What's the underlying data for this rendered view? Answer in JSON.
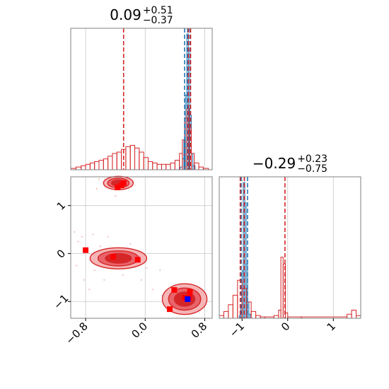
{
  "chart_data": [
    {
      "type": "histogram",
      "panel": "top-left (1D marginal, parameter 1)",
      "title": {
        "value": "0.09",
        "plus": "+0.51",
        "minus": "−0.37"
      },
      "xlim": [
        -1.0,
        0.9
      ],
      "grid": true,
      "x_ticks": [
        "−0.8",
        "0.0",
        "0.8"
      ],
      "series": [
        {
          "color": "#1f77b4",
          "bins": [
            [
              0.42,
              0.47,
              0
            ],
            [
              0.47,
              0.5,
              2
            ],
            [
              0.5,
              0.52,
              8
            ],
            [
              0.52,
              0.54,
              22
            ],
            [
              0.54,
              0.56,
              55
            ],
            [
              0.56,
              0.58,
              100
            ],
            [
              0.58,
              0.6,
              88
            ],
            [
              0.6,
              0.62,
              40
            ],
            [
              0.62,
              0.64,
              12
            ],
            [
              0.64,
              0.67,
              3
            ],
            [
              0.67,
              0.7,
              0
            ]
          ],
          "quantile_lines": [
            0.53,
            0.57,
            0.6
          ]
        },
        {
          "color": "#d62728",
          "bins": [
            [
              -1.0,
              -0.93,
              1
            ],
            [
              -0.93,
              -0.86,
              2
            ],
            [
              -0.86,
              -0.8,
              3
            ],
            [
              -0.8,
              -0.74,
              4
            ],
            [
              -0.74,
              -0.68,
              5
            ],
            [
              -0.68,
              -0.62,
              6
            ],
            [
              -0.62,
              -0.56,
              7
            ],
            [
              -0.56,
              -0.5,
              8
            ],
            [
              -0.5,
              -0.44,
              10
            ],
            [
              -0.44,
              -0.38,
              12
            ],
            [
              -0.38,
              -0.32,
              13
            ],
            [
              -0.32,
              -0.26,
              15
            ],
            [
              -0.26,
              -0.2,
              17
            ],
            [
              -0.2,
              -0.14,
              18
            ],
            [
              -0.14,
              -0.08,
              16
            ],
            [
              -0.08,
              -0.02,
              13
            ],
            [
              -0.02,
              0.04,
              9
            ],
            [
              0.04,
              0.1,
              6
            ],
            [
              0.1,
              0.16,
              5
            ],
            [
              0.16,
              0.22,
              4
            ],
            [
              0.22,
              0.28,
              4
            ],
            [
              0.28,
              0.34,
              4
            ],
            [
              0.34,
              0.4,
              5
            ],
            [
              0.4,
              0.46,
              7
            ],
            [
              0.46,
              0.5,
              12
            ],
            [
              0.5,
              0.53,
              22
            ],
            [
              0.53,
              0.56,
              38
            ],
            [
              0.56,
              0.59,
              45
            ],
            [
              0.59,
              0.62,
              30
            ],
            [
              0.62,
              0.66,
              12
            ],
            [
              0.66,
              0.72,
              5
            ],
            [
              0.72,
              0.78,
              2
            ],
            [
              0.78,
              0.85,
              1
            ],
            [
              0.85,
              0.9,
              0
            ]
          ],
          "quantile_lines": [
            -0.29,
            0.58,
            0.61
          ]
        }
      ]
    },
    {
      "type": "histogram",
      "panel": "bottom-right (1D marginal, parameter 2)",
      "title": {
        "value": "−0.29",
        "plus": "+0.23",
        "minus": "−0.75"
      },
      "xlim": [
        -1.5,
        1.6
      ],
      "grid": true,
      "x_ticks": [
        "−1",
        "0",
        "1"
      ],
      "series": [
        {
          "color": "#1f77b4",
          "bins": [
            [
              -1.06,
              -1.03,
              2
            ],
            [
              -1.03,
              -1.0,
              10
            ],
            [
              -1.0,
              -0.97,
              35
            ],
            [
              -0.97,
              -0.94,
              100
            ],
            [
              -0.94,
              -0.91,
              85
            ],
            [
              -0.91,
              -0.88,
              40
            ],
            [
              -0.88,
              -0.85,
              12
            ],
            [
              -0.85,
              -0.82,
              3
            ],
            [
              -0.82,
              -0.78,
              0
            ]
          ],
          "quantile_lines": [
            -1.02,
            -0.95,
            -0.88
          ]
        },
        {
          "color": "#d62728",
          "bins": [
            [
              -1.5,
              -1.4,
              2
            ],
            [
              -1.4,
              -1.3,
              5
            ],
            [
              -1.3,
              -1.2,
              10
            ],
            [
              -1.2,
              -1.1,
              17
            ],
            [
              -1.1,
              -1.0,
              28
            ],
            [
              -1.0,
              -0.9,
              22
            ],
            [
              -0.9,
              -0.8,
              12
            ],
            [
              -0.8,
              -0.7,
              5
            ],
            [
              -0.7,
              -0.6,
              2
            ],
            [
              -0.6,
              -0.5,
              1
            ],
            [
              -0.5,
              -0.3,
              1
            ],
            [
              -0.3,
              -0.2,
              2
            ],
            [
              -0.2,
              -0.15,
              6
            ],
            [
              -0.15,
              -0.1,
              45
            ],
            [
              -0.1,
              -0.05,
              40
            ],
            [
              -0.05,
              0.0,
              4
            ],
            [
              0.0,
              0.3,
              1
            ],
            [
              0.3,
              1.3,
              1
            ],
            [
              1.3,
              1.4,
              3
            ],
            [
              1.4,
              1.5,
              6
            ],
            [
              1.5,
              1.6,
              2
            ]
          ],
          "quantile_lines": [
            -1.04,
            -0.95,
            -0.06
          ]
        }
      ]
    },
    {
      "type": "contour-scatter",
      "panel": "bottom-left (2D joint, parameter 1 vs parameter 2)",
      "xlim": [
        -1.0,
        0.9
      ],
      "ylim": [
        -1.35,
        1.6
      ],
      "grid": true,
      "x_ticks": [
        "−0.8",
        "0.0",
        "0.8"
      ],
      "y_ticks": [
        "−1",
        "0",
        "1"
      ],
      "fill_levels": [
        "#f5b5b6",
        "#e8646a",
        "#d62728"
      ],
      "contour_color": "#d62728",
      "clusters": [
        {
          "cx": -0.36,
          "cy": 1.47,
          "rx": 0.2,
          "ry": 0.14
        },
        {
          "cx": -0.36,
          "cy": -0.1,
          "rx": 0.38,
          "ry": 0.22
        },
        {
          "cx": 0.53,
          "cy": -0.95,
          "rx": 0.3,
          "ry": 0.32
        }
      ],
      "red_points": [
        [
          -0.32,
          1.42
        ],
        [
          -0.29,
          1.47
        ],
        [
          -0.37,
          1.38
        ],
        [
          -0.8,
          0.07
        ],
        [
          -0.43,
          -0.07
        ],
        [
          -0.1,
          -0.13
        ],
        [
          0.39,
          -0.76
        ],
        [
          0.33,
          -1.16
        ],
        [
          0.59,
          -0.92
        ],
        [
          0.53,
          -0.92
        ],
        [
          0.6,
          -0.8
        ]
      ],
      "blue_points": [
        [
          0.57,
          -0.95
        ]
      ],
      "faint_points": [
        [
          -0.95,
          0.45
        ],
        [
          -0.9,
          0.25
        ],
        [
          -0.85,
          0.35
        ],
        [
          -0.7,
          0.4
        ],
        [
          -0.6,
          0.15
        ],
        [
          -0.92,
          -0.25
        ],
        [
          -0.82,
          -0.55
        ],
        [
          -0.68,
          -0.35
        ],
        [
          -0.55,
          -0.55
        ],
        [
          -0.3,
          -0.45
        ],
        [
          -0.05,
          -0.55
        ],
        [
          0.1,
          -0.75
        ],
        [
          -0.2,
          0.2
        ],
        [
          -0.65,
          1.35
        ],
        [
          -0.62,
          1.55
        ],
        [
          -0.4,
          1.2
        ],
        [
          0.2,
          -0.35
        ],
        [
          -0.75,
          -0.75
        ],
        [
          -0.5,
          0.35
        ],
        [
          0.02,
          -0.3
        ]
      ]
    }
  ]
}
